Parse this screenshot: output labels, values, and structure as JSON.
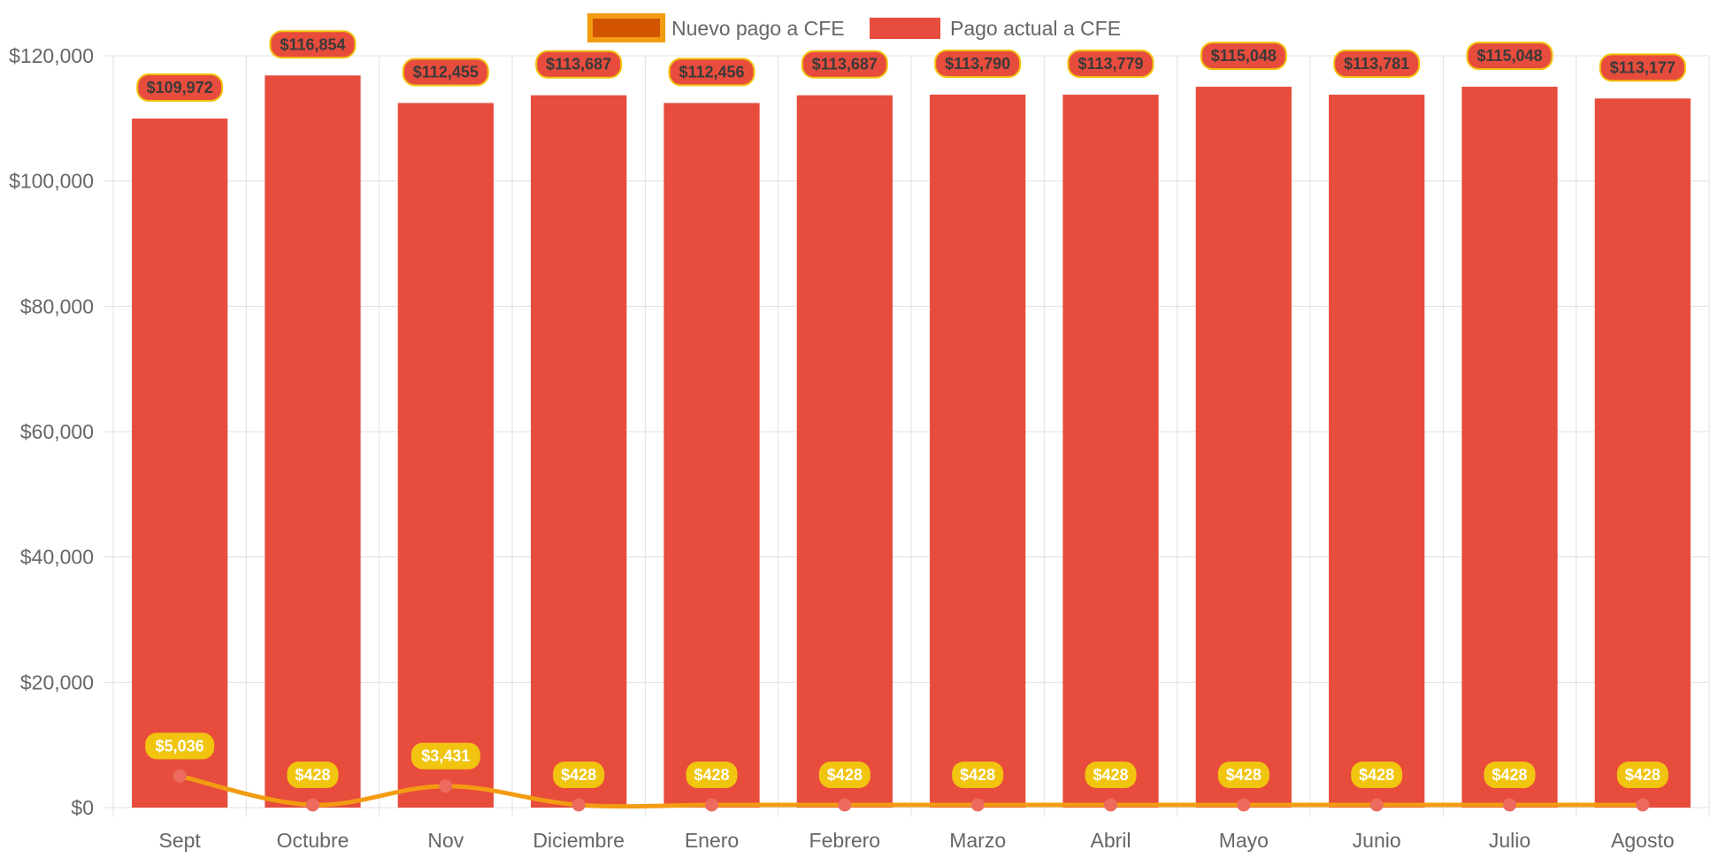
{
  "legend": {
    "line_label": "Nuevo pago a CFE",
    "bar_label": "Pago actual a CFE"
  },
  "colors": {
    "bar_fill": "#e74c3c",
    "bar_label_fill": "#e74c3c",
    "bar_label_border": "#f1c40f",
    "line_stroke": "#f39c12",
    "line_point": "#ec6b5e",
    "line_label_fill": "#f1c40f",
    "legend_line_fill": "#d35400",
    "legend_line_border": "#f39c12",
    "grid": "#e0e0e0",
    "tick_text": "#666666"
  },
  "chart_data": {
    "type": "bar",
    "categories": [
      "Sept",
      "Octubre",
      "Nov",
      "Diciembre",
      "Enero",
      "Febrero",
      "Marzo",
      "Abril",
      "Mayo",
      "Junio",
      "Julio",
      "Agosto"
    ],
    "series": [
      {
        "name": "Pago actual a CFE",
        "type": "bar",
        "values": [
          109972,
          116854,
          112455,
          113687,
          112456,
          113687,
          113790,
          113779,
          115048,
          113781,
          115048,
          113177
        ],
        "labels": [
          "$109,972",
          "$116,854",
          "$112,455",
          "$113,687",
          "$112,456",
          "$113,687",
          "$113,790",
          "$113,779",
          "$115,048",
          "$113,781",
          "$115,048",
          "$113,177"
        ]
      },
      {
        "name": "Nuevo pago a CFE",
        "type": "line",
        "values": [
          5036,
          428,
          3431,
          428,
          428,
          428,
          428,
          428,
          428,
          428,
          428,
          428
        ],
        "labels": [
          "$5,036",
          "$428",
          "$3,431",
          "$428",
          "$428",
          "$428",
          "$428",
          "$428",
          "$428",
          "$428",
          "$428",
          "$428"
        ]
      }
    ],
    "ylim": [
      0,
      120000
    ],
    "yticks": [
      0,
      20000,
      40000,
      60000,
      80000,
      100000,
      120000
    ],
    "ytick_labels": [
      "$0",
      "$20,000",
      "$40,000",
      "$60,000",
      "$80,000",
      "$100,000",
      "$120,000"
    ],
    "grid": true,
    "legend_position": "top-center"
  }
}
